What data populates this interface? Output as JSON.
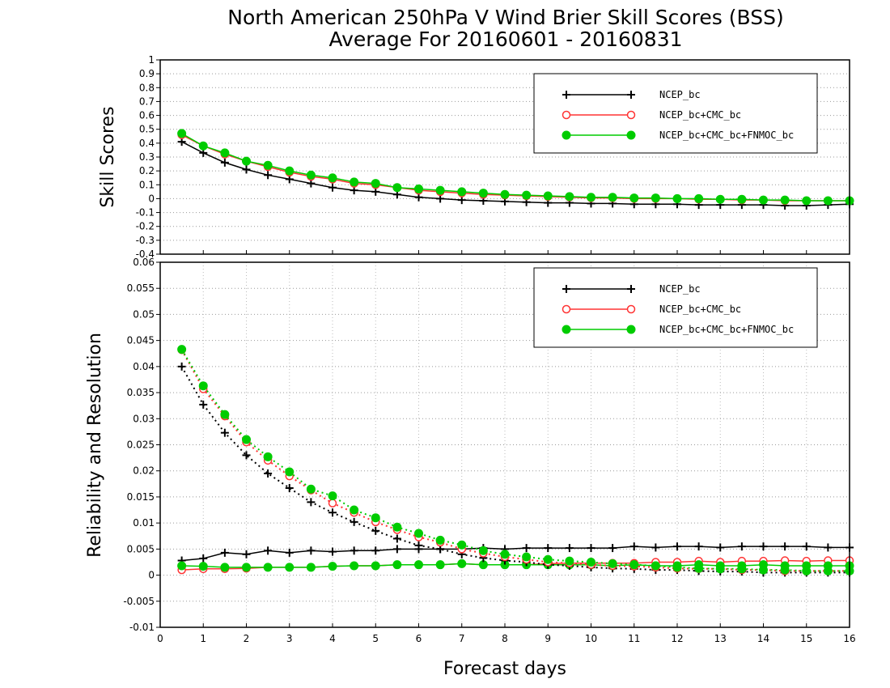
{
  "title_line1": "North American 250hPa V Wind Brier Skill Scores (BSS)",
  "title_line2": "Average For 20160601 - 20160831",
  "chart_data": [
    {
      "type": "line",
      "panel": "top",
      "ylabel": "Skill Scores",
      "ylim": [
        -0.4,
        1
      ],
      "yticks": [
        "1",
        "0.9",
        "0.8",
        "0.7",
        "0.6",
        "0.5",
        "0.4",
        "0.3",
        "0.2",
        "0.1",
        "0",
        "-0.1",
        "-0.2",
        "-0.3",
        "-0.4"
      ],
      "grid": true,
      "legend_placement": "top-right",
      "x": [
        0.5,
        1,
        1.5,
        2,
        2.5,
        3,
        3.5,
        4,
        4.5,
        5,
        5.5,
        6,
        6.5,
        7,
        7.5,
        8,
        8.5,
        9,
        9.5,
        10,
        10.5,
        11,
        11.5,
        12,
        12.5,
        13,
        13.5,
        14,
        14.5,
        15,
        15.5,
        16
      ],
      "series": [
        {
          "name": "NCEP_bc",
          "color": "#000000",
          "marker": "plus",
          "style": "solid",
          "values": [
            0.41,
            0.33,
            0.26,
            0.21,
            0.17,
            0.14,
            0.11,
            0.08,
            0.06,
            0.05,
            0.03,
            0.01,
            0.0,
            -0.01,
            -0.015,
            -0.02,
            -0.025,
            -0.03,
            -0.03,
            -0.035,
            -0.035,
            -0.04,
            -0.04,
            -0.04,
            -0.045,
            -0.045,
            -0.045,
            -0.045,
            -0.05,
            -0.05,
            -0.045,
            -0.04
          ]
        },
        {
          "name": "NCEP_bc+CMC_bc",
          "color": "#ff3333",
          "marker": "open-circle",
          "style": "solid",
          "values": [
            0.46,
            0.38,
            0.32,
            0.27,
            0.23,
            0.19,
            0.16,
            0.14,
            0.11,
            0.1,
            0.08,
            0.06,
            0.05,
            0.04,
            0.03,
            0.025,
            0.02,
            0.015,
            0.01,
            0.005,
            0.005,
            0.0,
            0.0,
            0.0,
            -0.005,
            -0.005,
            -0.01,
            -0.01,
            -0.015,
            -0.015,
            -0.015,
            -0.015
          ]
        },
        {
          "name": "NCEP_bc+CMC_bc+FNMOC_bc",
          "color": "#00cc00",
          "marker": "filled-circle",
          "style": "solid",
          "values": [
            0.47,
            0.38,
            0.33,
            0.27,
            0.24,
            0.2,
            0.17,
            0.15,
            0.12,
            0.11,
            0.08,
            0.07,
            0.06,
            0.05,
            0.04,
            0.03,
            0.025,
            0.02,
            0.015,
            0.01,
            0.01,
            0.005,
            0.005,
            0.0,
            0.0,
            -0.005,
            -0.005,
            -0.01,
            -0.01,
            -0.015,
            -0.015,
            -0.015
          ]
        }
      ]
    },
    {
      "type": "line",
      "panel": "bottom",
      "ylabel": "Reliability and Resolution",
      "xlabel": "Forecast days",
      "ylim": [
        -0.01,
        0.06
      ],
      "yticks": [
        "0.06",
        "0.055",
        "0.05",
        "0.045",
        "0.04",
        "0.035",
        "0.03",
        "0.025",
        "0.02",
        "0.015",
        "0.01",
        "0.005",
        "0",
        "-0.005",
        "-0.01"
      ],
      "xlim": [
        0,
        16
      ],
      "xticks": [
        "0",
        "1",
        "2",
        "3",
        "4",
        "5",
        "6",
        "7",
        "8",
        "9",
        "10",
        "11",
        "12",
        "13",
        "14",
        "15",
        "16"
      ],
      "grid": true,
      "legend_placement": "top-right",
      "x": [
        0.5,
        1,
        1.5,
        2,
        2.5,
        3,
        3.5,
        4,
        4.5,
        5,
        5.5,
        6,
        6.5,
        7,
        7.5,
        8,
        8.5,
        9,
        9.5,
        10,
        10.5,
        11,
        11.5,
        12,
        12.5,
        13,
        13.5,
        14,
        14.5,
        15,
        15.5,
        16
      ],
      "legend": [
        {
          "name": "NCEP_bc",
          "color": "#000000",
          "marker": "plus"
        },
        {
          "name": "NCEP_bc+CMC_bc",
          "color": "#ff3333",
          "marker": "open-circle"
        },
        {
          "name": "NCEP_bc+CMC_bc+FNMOC_bc",
          "color": "#00cc00",
          "marker": "filled-circle"
        }
      ],
      "series": [
        {
          "name": "NCEP_bc",
          "quantity": "reliability",
          "color": "#000000",
          "marker": "plus",
          "style": "solid",
          "values": [
            0.0028,
            0.0032,
            0.0043,
            0.004,
            0.0047,
            0.0043,
            0.0047,
            0.0045,
            0.0047,
            0.0047,
            0.005,
            0.005,
            0.005,
            0.005,
            0.0052,
            0.005,
            0.0052,
            0.0052,
            0.0052,
            0.0052,
            0.0052,
            0.0055,
            0.0053,
            0.0055,
            0.0055,
            0.0053,
            0.0055,
            0.0055,
            0.0055,
            0.0055,
            0.0053,
            0.0053
          ]
        },
        {
          "name": "NCEP_bc+CMC_bc",
          "quantity": "reliability",
          "color": "#ff3333",
          "marker": "open-circle",
          "style": "solid",
          "values": [
            0.001,
            0.0012,
            0.0012,
            0.0013,
            0.0015,
            0.0015,
            0.0015,
            0.0017,
            0.0018,
            0.0018,
            0.002,
            0.002,
            0.002,
            0.0022,
            0.002,
            0.002,
            0.002,
            0.0022,
            0.0023,
            0.0023,
            0.0023,
            0.0023,
            0.0025,
            0.0025,
            0.0027,
            0.0025,
            0.0027,
            0.0027,
            0.0028,
            0.0027,
            0.0028,
            0.0028
          ]
        },
        {
          "name": "NCEP_bc+CMC_bc+FNMOC_bc",
          "quantity": "reliability",
          "color": "#00cc00",
          "marker": "filled-circle",
          "style": "solid",
          "values": [
            0.0018,
            0.0017,
            0.0015,
            0.0015,
            0.0015,
            0.0015,
            0.0015,
            0.0017,
            0.0018,
            0.0018,
            0.002,
            0.002,
            0.002,
            0.0022,
            0.002,
            0.002,
            0.002,
            0.002,
            0.002,
            0.002,
            0.0018,
            0.002,
            0.0018,
            0.0018,
            0.002,
            0.0018,
            0.0018,
            0.002,
            0.0018,
            0.0018,
            0.0018,
            0.0018
          ]
        },
        {
          "name": "NCEP_bc",
          "quantity": "resolution",
          "color": "#000000",
          "marker": "plus",
          "style": "dotted",
          "values": [
            0.04,
            0.0327,
            0.0273,
            0.023,
            0.0195,
            0.0167,
            0.014,
            0.012,
            0.0102,
            0.0085,
            0.007,
            0.0057,
            0.005,
            0.004,
            0.0033,
            0.0028,
            0.0025,
            0.002,
            0.0018,
            0.0015,
            0.0013,
            0.0012,
            0.001,
            0.001,
            0.0008,
            0.0007,
            0.0007,
            0.0005,
            0.0005,
            0.0005,
            0.0005,
            0.0005
          ]
        },
        {
          "name": "NCEP_bc+CMC_bc",
          "quantity": "resolution",
          "color": "#ff3333",
          "marker": "open-circle",
          "style": "dotted",
          "values": [
            0.0432,
            0.0357,
            0.0305,
            0.0255,
            0.022,
            0.019,
            0.0163,
            0.0138,
            0.012,
            0.0102,
            0.0087,
            0.0073,
            0.0063,
            0.005,
            0.0042,
            0.0035,
            0.003,
            0.0025,
            0.0023,
            0.002,
            0.0018,
            0.0017,
            0.0015,
            0.0013,
            0.0012,
            0.0012,
            0.001,
            0.001,
            0.0008,
            0.0008,
            0.0008,
            0.0008
          ]
        },
        {
          "name": "NCEP_bc+CMC_bc+FNMOC_bc",
          "quantity": "resolution",
          "color": "#00cc00",
          "marker": "filled-circle",
          "style": "dotted",
          "values": [
            0.0433,
            0.0363,
            0.0308,
            0.026,
            0.0227,
            0.0198,
            0.0165,
            0.0152,
            0.0125,
            0.011,
            0.0092,
            0.008,
            0.0067,
            0.0058,
            0.0047,
            0.004,
            0.0035,
            0.003,
            0.0027,
            0.0025,
            0.0022,
            0.002,
            0.0018,
            0.0015,
            0.0013,
            0.0012,
            0.0012,
            0.001,
            0.001,
            0.0008,
            0.0008,
            0.0008
          ]
        }
      ]
    }
  ]
}
